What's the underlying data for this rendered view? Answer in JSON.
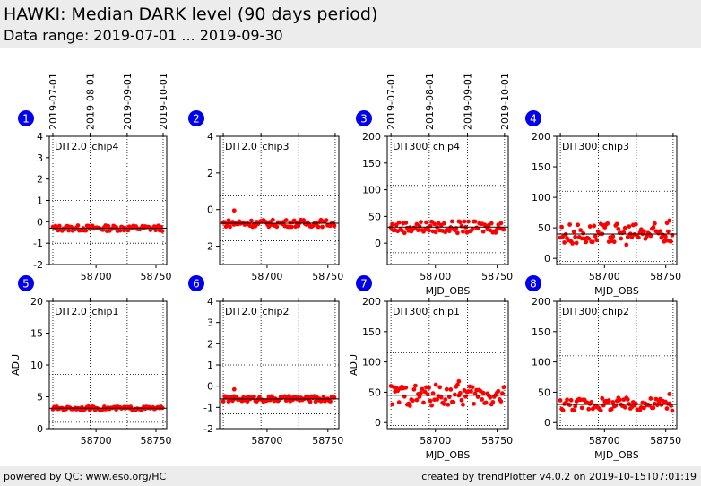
{
  "header": {
    "title": "HAWKI: Median DARK level (90 days period)",
    "subtitle": "Data range: 2019-07-01 ... 2019-09-30"
  },
  "footer": {
    "left": "powered by QC: www.eso.org/HC",
    "right": "created by trendPlotter v4.0.2 on 2019-10-15T07:01:19"
  },
  "colors": {
    "points": "#ff0000",
    "badge": "#0000ee",
    "header_bg": "#ececec"
  },
  "chart_data": [
    {
      "type": "scatter",
      "number": "1",
      "label": "DIT2.0_chip4",
      "ylim": [
        -2,
        4
      ],
      "yticks": [
        4,
        3,
        2,
        1,
        0,
        -1,
        -2
      ],
      "hlines": [
        1,
        -1
      ],
      "median": -0.3,
      "spread": 0.06,
      "ylabel": "",
      "xlabel": "",
      "top_dates": true,
      "x_ticks": [
        "58700",
        "58750"
      ],
      "xlim": [
        58661,
        58759
      ],
      "vlines": [
        58664,
        58695,
        58726,
        58756
      ],
      "date_ticks": [
        "2019-07-01",
        "2019-08-01",
        "2019-09-01",
        "2019-10-01"
      ],
      "outliers": []
    },
    {
      "type": "scatter",
      "number": "2",
      "label": "DIT2.0_chip3",
      "ylim": [
        -3,
        4
      ],
      "yticks": [
        4,
        2,
        0,
        -2
      ],
      "hlines": [
        0.75,
        -1.7
      ],
      "median": -0.75,
      "spread": 0.09,
      "ylabel": "",
      "xlabel": "",
      "top_dates": false,
      "x_ticks": [
        "58700",
        "58750"
      ],
      "xlim": [
        58661,
        58759
      ],
      "vlines": [
        58664,
        58695,
        58726,
        58756
      ],
      "date_ticks": [],
      "outliers": [
        [
          58673,
          -0.05
        ]
      ]
    },
    {
      "type": "scatter",
      "number": "3",
      "label": "DIT300_chip4",
      "ylim": [
        -40,
        200
      ],
      "yticks": [
        200,
        150,
        100,
        50,
        0
      ],
      "hlines": [
        108,
        -18
      ],
      "median": 30,
      "spread": 5,
      "ylabel": "",
      "xlabel": "MJD_OBS",
      "top_dates": true,
      "x_ticks": [
        "58700",
        "58750"
      ],
      "xlim": [
        58661,
        58759
      ],
      "vlines": [
        58664,
        58695,
        58726,
        58756
      ],
      "date_ticks": [
        "2019-07-01",
        "2019-08-01",
        "2019-09-01",
        "2019-10-01"
      ],
      "outliers": []
    },
    {
      "type": "scatter",
      "number": "4",
      "label": "DIT300_chip3",
      "ylim": [
        -10,
        200
      ],
      "yticks": [
        200,
        150,
        100,
        50,
        0
      ],
      "hlines": [
        110,
        -5
      ],
      "median": 40,
      "spread": 8,
      "ylabel": "",
      "xlabel": "MJD_OBS",
      "top_dates": false,
      "x_ticks": [
        "58700",
        "58750"
      ],
      "xlim": [
        58661,
        58759
      ],
      "vlines": [
        58664,
        58695,
        58726,
        58756
      ],
      "date_ticks": [],
      "outliers": [
        [
          58753,
          62
        ],
        [
          58751,
          58
        ]
      ]
    },
    {
      "type": "scatter",
      "number": "5",
      "label": "DIT2.0_chip1",
      "ylim": [
        0,
        20
      ],
      "yticks": [
        20,
        15,
        10,
        5,
        0
      ],
      "hlines": [
        8.5,
        1
      ],
      "median": 3.2,
      "spread": 0.12,
      "ylabel": "ADU",
      "xlabel": "",
      "top_dates": false,
      "x_ticks": [
        "58700",
        "58750"
      ],
      "xlim": [
        58661,
        58759
      ],
      "vlines": [
        58664,
        58695,
        58726,
        58756
      ],
      "date_ticks": [],
      "outliers": []
    },
    {
      "type": "scatter",
      "number": "6",
      "label": "DIT2.0_chip2",
      "ylim": [
        -2,
        4
      ],
      "yticks": [
        4,
        3,
        2,
        1,
        0,
        -1,
        -2
      ],
      "hlines": [
        1,
        -1.3
      ],
      "median": -0.6,
      "spread": 0.06,
      "ylabel": "",
      "xlabel": "",
      "top_dates": false,
      "x_ticks": [
        "58700",
        "58750"
      ],
      "xlim": [
        58661,
        58759
      ],
      "vlines": [
        58664,
        58695,
        58726,
        58756
      ],
      "date_ticks": [],
      "outliers": [
        [
          58673,
          -0.15
        ]
      ]
    },
    {
      "type": "scatter",
      "number": "7",
      "label": "DIT300_chip1",
      "ylim": [
        -10,
        200
      ],
      "yticks": [
        200,
        150,
        100,
        50,
        0
      ],
      "hlines": [
        115,
        -5
      ],
      "median": 45,
      "spread": 8,
      "ylabel": "ADU",
      "xlabel": "MJD_OBS",
      "top_dates": false,
      "x_ticks": [
        "58700",
        "58750"
      ],
      "xlim": [
        58661,
        58759
      ],
      "vlines": [
        58664,
        58695,
        58726,
        58756
      ],
      "date_ticks": [],
      "outliers": [
        [
          58719,
          68
        ]
      ]
    },
    {
      "type": "scatter",
      "number": "8",
      "label": "DIT300_chip2",
      "ylim": [
        -10,
        200
      ],
      "yticks": [
        200,
        150,
        100,
        50,
        0
      ],
      "hlines": [
        110,
        -5
      ],
      "median": 30,
      "spread": 5,
      "ylabel": "",
      "xlabel": "MJD_OBS",
      "top_dates": false,
      "x_ticks": [
        "58700",
        "58750"
      ],
      "xlim": [
        58661,
        58759
      ],
      "vlines": [
        58664,
        58695,
        58726,
        58756
      ],
      "date_ticks": [],
      "outliers": [
        [
          58753,
          47
        ]
      ]
    }
  ]
}
